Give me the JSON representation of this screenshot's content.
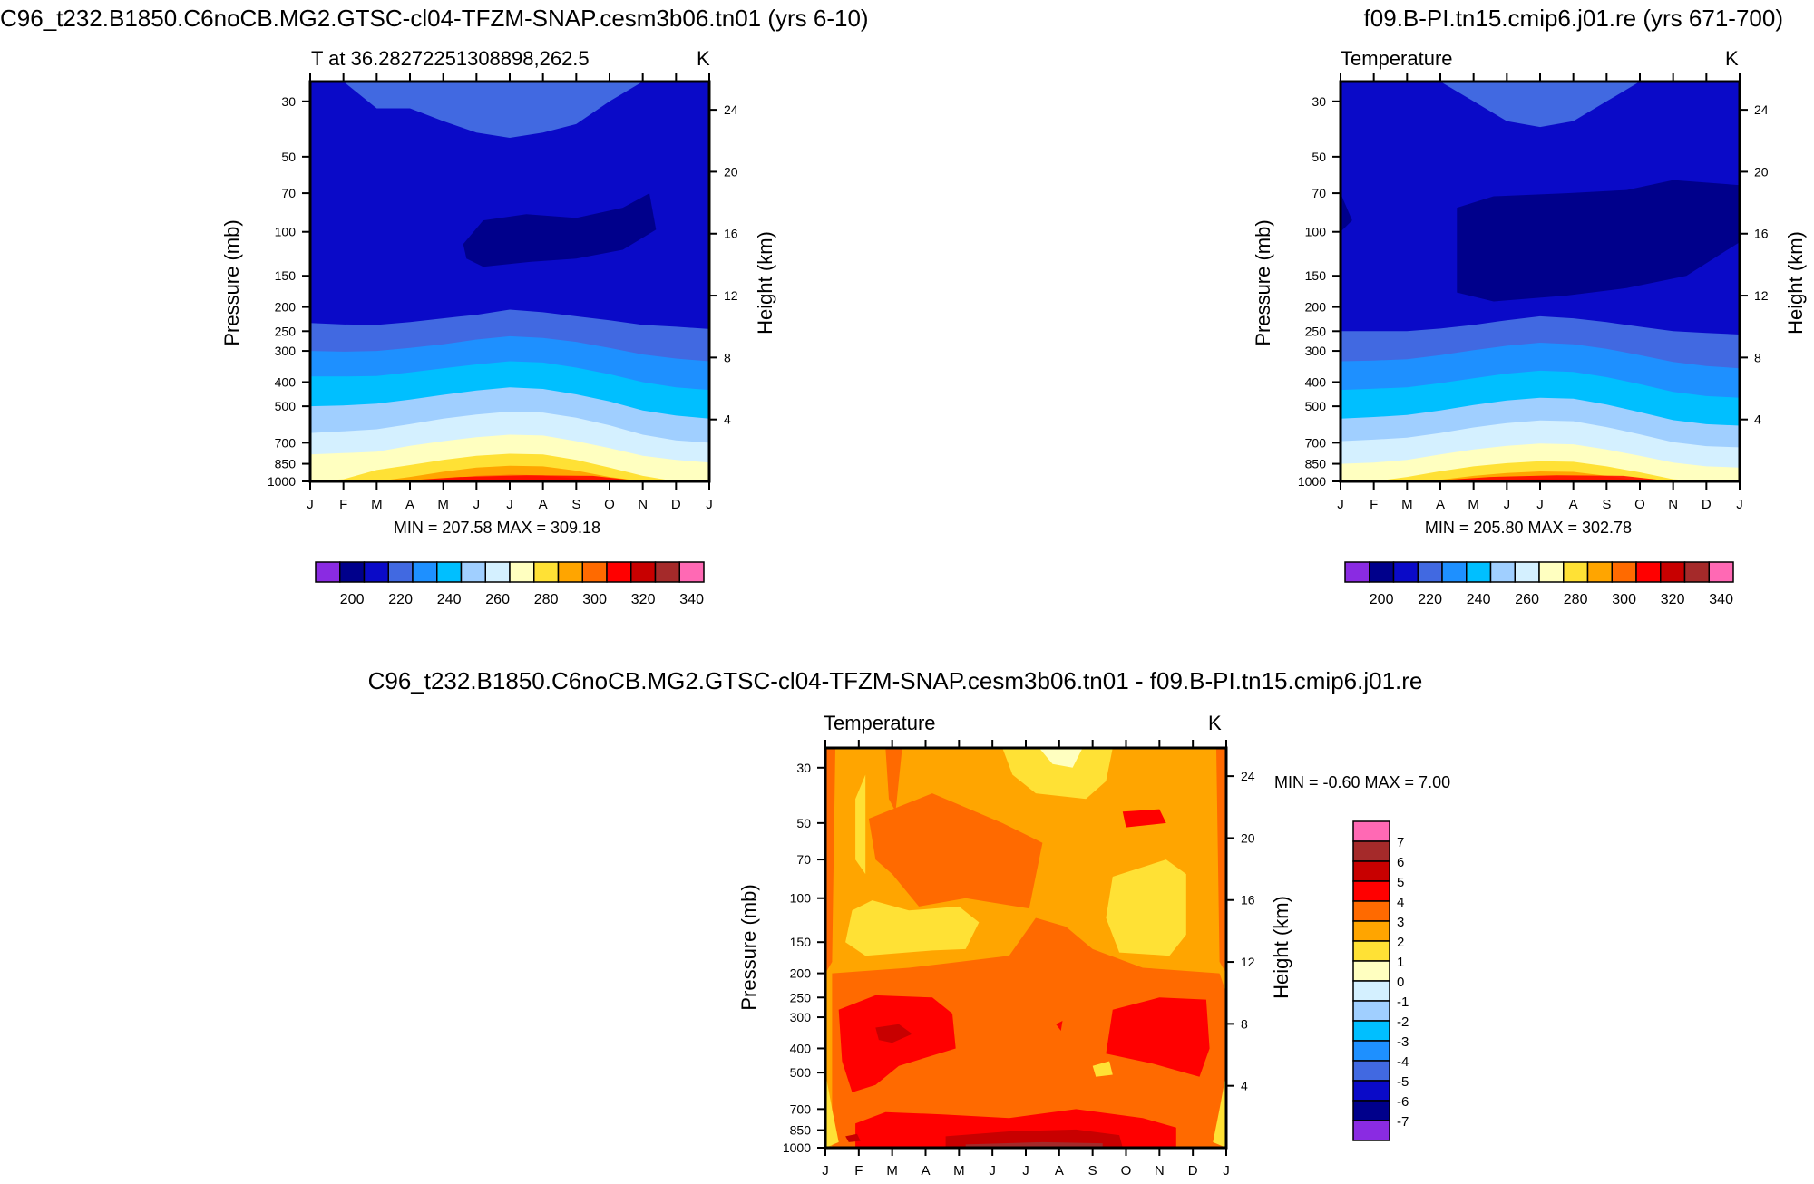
{
  "chart_data": [
    {
      "type": "contour",
      "title": "C96_t232.B1850.C6noCB.MG2.GTSC-cl04-TFZM-SNAP.cesm3b06.tn01 (yrs 6-10)",
      "subtitle_left": "T at 36.28272251308898,262.5",
      "subtitle_right": "K",
      "xlabel": "",
      "ylabel": "Pressure (mb)",
      "ylabel_right": "Height (km)",
      "x_ticks": [
        "J",
        "F",
        "M",
        "A",
        "M",
        "J",
        "J",
        "A",
        "S",
        "O",
        "N",
        "D",
        "J"
      ],
      "y_ticks": [
        "30",
        "50",
        "70",
        "100",
        "150",
        "200",
        "250",
        "300",
        "400",
        "500",
        "700",
        "850",
        "1000"
      ],
      "y_right_ticks": [
        "24",
        "20",
        "16",
        "12",
        "8",
        "4"
      ],
      "ylim": [
        1000,
        25
      ],
      "y_scale": "log",
      "stats": "MIN = 207.58 MAX = 309.18",
      "colorbar": {
        "orientation": "horizontal",
        "labels": [
          "200",
          "220",
          "240",
          "260",
          "280",
          "300",
          "320",
          "340"
        ],
        "levels_start": 190,
        "levels_step": 10
      },
      "bands_data_units_note": "boundaries in hPa per month J..J",
      "boundaries": [
        {
          "level": 210,
          "p": [
            1000,
            1000,
            1000,
            1000,
            1000,
            1000,
            1000,
            1000,
            1000,
            1000,
            1000,
            1000,
            1000
          ]
        },
        {
          "level": 220,
          "p": [
            232,
            235,
            236,
            230,
            222,
            215,
            205,
            210,
            218,
            226,
            236,
            240,
            245
          ]
        },
        {
          "level": 230,
          "p": [
            300,
            302,
            300,
            292,
            282,
            270,
            262,
            266,
            276,
            292,
            310,
            322,
            330
          ]
        },
        {
          "level": 240,
          "p": [
            380,
            380,
            378,
            366,
            352,
            340,
            330,
            334,
            350,
            372,
            400,
            420,
            430
          ]
        },
        {
          "level": 250,
          "p": [
            500,
            496,
            488,
            470,
            450,
            432,
            420,
            426,
            448,
            478,
            520,
            545,
            560
          ]
        },
        {
          "level": 260,
          "p": [
            640,
            630,
            618,
            590,
            560,
            540,
            525,
            530,
            556,
            596,
            650,
            685,
            700
          ]
        },
        {
          "level": 270,
          "p": [
            780,
            770,
            760,
            720,
            690,
            665,
            650,
            655,
            690,
            735,
            790,
            820,
            840
          ]
        },
        {
          "level": 280,
          "p": [
            1000,
            1000,
            950,
            900,
            855,
            825,
            810,
            815,
            850,
            905,
            960,
            1000,
            1000
          ]
        },
        {
          "level": 290,
          "p": [
            1000,
            1000,
            1000,
            1000,
            975,
            945,
            930,
            935,
            965,
            1000,
            1000,
            1000,
            1000
          ]
        }
      ],
      "colors": [
        "#2323d6",
        "#4a6ae0"
      ]
    },
    {
      "type": "contour",
      "title": "f09.B-PI.tn15.cmip6.j01.re (yrs 671-700)",
      "subtitle_left": "Temperature",
      "subtitle_right": "K",
      "ylabel": "Pressure (mb)",
      "ylabel_right": "Height (km)",
      "x_ticks": [
        "J",
        "F",
        "M",
        "A",
        "M",
        "J",
        "J",
        "A",
        "S",
        "O",
        "N",
        "D",
        "J"
      ],
      "y_ticks": [
        "30",
        "50",
        "70",
        "100",
        "150",
        "200",
        "250",
        "300",
        "400",
        "500",
        "700",
        "850",
        "1000"
      ],
      "y_right_ticks": [
        "24",
        "20",
        "16",
        "12",
        "8",
        "4"
      ],
      "ylim": [
        1000,
        25
      ],
      "y_scale": "log",
      "stats": "MIN = 205.80 MAX = 302.78",
      "colorbar": {
        "orientation": "horizontal",
        "labels": [
          "200",
          "220",
          "240",
          "260",
          "280",
          "300",
          "320",
          "340"
        ],
        "levels_start": 190,
        "levels_step": 10
      }
    },
    {
      "type": "contour",
      "title": "C96_t232.B1850.C6noCB.MG2.GTSC-cl04-TFZM-SNAP.cesm3b06.tn01 - f09.B-PI.tn15.cmip6.j01.re",
      "subtitle_left": "Temperature",
      "subtitle_right": "K",
      "ylabel": "Pressure (mb)",
      "ylabel_right": "Height (km)",
      "x_ticks": [
        "J",
        "F",
        "M",
        "A",
        "M",
        "J",
        "J",
        "A",
        "S",
        "O",
        "N",
        "D",
        "J"
      ],
      "y_ticks": [
        "30",
        "50",
        "70",
        "100",
        "150",
        "200",
        "250",
        "300",
        "400",
        "500",
        "700",
        "850",
        "1000"
      ],
      "y_right_ticks": [
        "24",
        "20",
        "16",
        "12",
        "8",
        "4"
      ],
      "ylim": [
        1000,
        25
      ],
      "y_scale": "log",
      "stats": "MIN =  -0.60 MAX =   7.00",
      "colorbar": {
        "orientation": "vertical",
        "labels": [
          "7",
          "6",
          "5",
          "4",
          "3",
          "2",
          "1",
          "0",
          "-1",
          "-2",
          "-3",
          "-4",
          "-5",
          "-6",
          "-7"
        ]
      }
    }
  ],
  "palette": [
    "#8a2be2",
    "#00008b",
    "#0a0ac8",
    "#4169e1",
    "#1e90ff",
    "#00bfff",
    "#a0cfff",
    "#d4f0ff",
    "#ffffc0",
    "#ffe135",
    "#ffa500",
    "#ff6a00",
    "#ff0000",
    "#c80000",
    "#a52a2a",
    "#ff69b4"
  ]
}
